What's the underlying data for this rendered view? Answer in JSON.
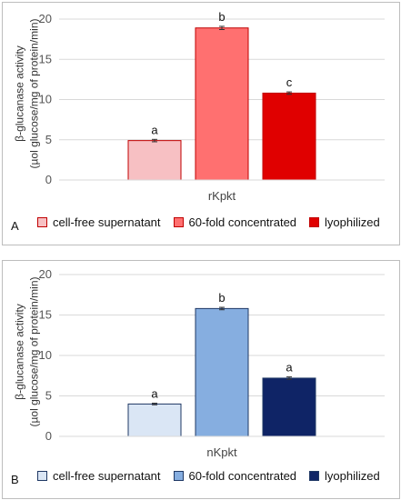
{
  "chart_data": [
    {
      "type": "bar",
      "panel": "A",
      "ylabel_line1": "β-glucanase activity",
      "ylabel_line2": "(µol glucose/mg of protein/min)",
      "xlabel": "rKpkt",
      "ylim": [
        0,
        20
      ],
      "yticks": [
        "0",
        "5",
        "10",
        "15",
        "20"
      ],
      "grid": true,
      "series": [
        {
          "name": "cell-free supernatant",
          "value": 4.9,
          "error": 0.15,
          "letter": "a",
          "fill": "#f7c0c3",
          "stroke": "#c00000"
        },
        {
          "name": "60-fold concentrated",
          "value": 18.9,
          "error": 0.2,
          "letter": "b",
          "fill": "#ff7070",
          "stroke": "#c00000"
        },
        {
          "name": "lyophilized",
          "value": 10.8,
          "error": 0.15,
          "letter": "c",
          "fill": "#e00000",
          "stroke": "#c00000"
        }
      ],
      "legend_placement": "bottom"
    },
    {
      "type": "bar",
      "panel": "B",
      "ylabel_line1": "β-glucanase activity",
      "ylabel_line2": "(µol glucose/mg of protein/min)",
      "xlabel": "nKpkt",
      "ylim": [
        0,
        20
      ],
      "yticks": [
        "0",
        "5",
        "10",
        "15",
        "20"
      ],
      "grid": true,
      "series": [
        {
          "name": "cell-free supernatant",
          "value": 4.0,
          "error": 0.1,
          "letter": "a",
          "fill": "#dae6f5",
          "stroke": "#1f3864"
        },
        {
          "name": "60-fold concentrated",
          "value": 15.8,
          "error": 0.15,
          "letter": "b",
          "fill": "#86aee0",
          "stroke": "#1f3864"
        },
        {
          "name": "lyophilized",
          "value": 7.2,
          "error": 0.15,
          "letter": "a",
          "fill": "#0f2466",
          "stroke": "#1f3864"
        }
      ],
      "legend_placement": "bottom"
    }
  ]
}
